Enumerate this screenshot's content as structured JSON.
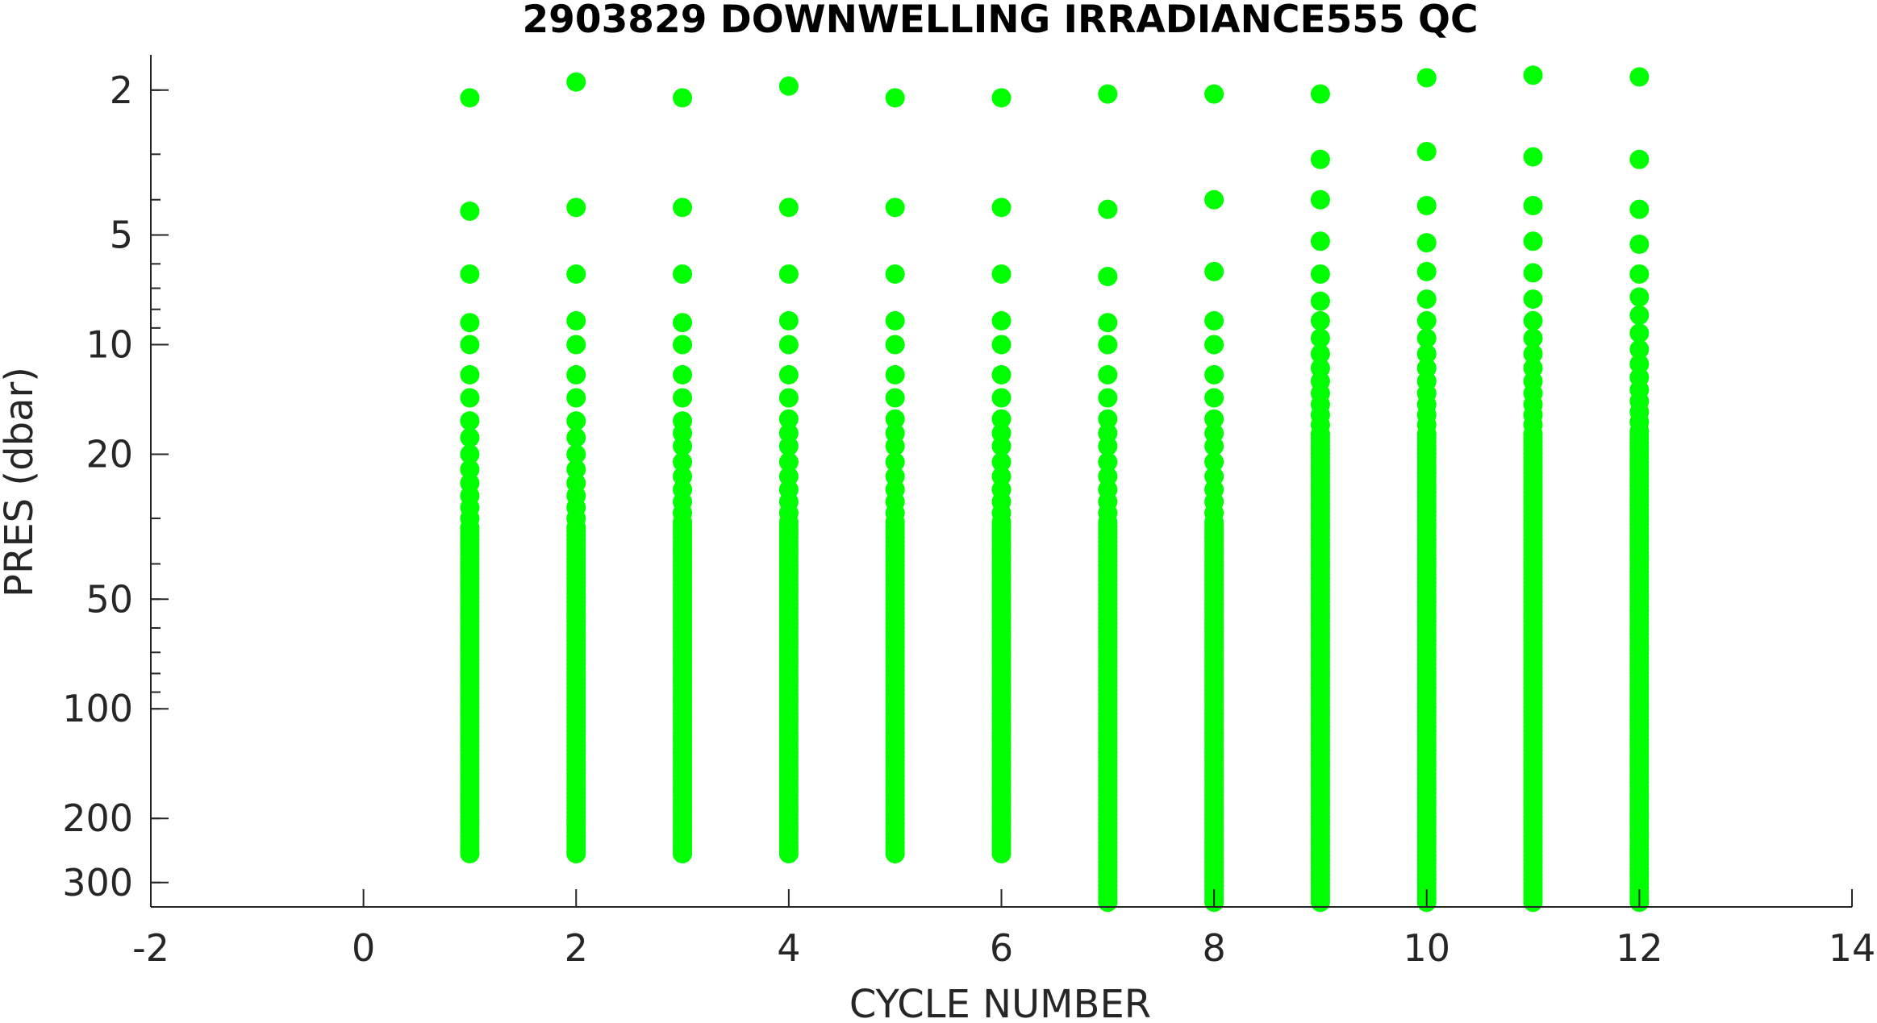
{
  "chart_data": {
    "type": "scatter",
    "title": "2903829  DOWNWELLING IRRADIANCE555 QC",
    "xlabel": "CYCLE NUMBER",
    "ylabel": "PRES (dbar)",
    "xlim": [
      -2,
      14
    ],
    "ylim": [
      1.6,
      350
    ],
    "y_scale": "log",
    "y_reversed": true,
    "x_ticks": [
      -2,
      0,
      2,
      4,
      6,
      8,
      10,
      12,
      14
    ],
    "y_ticks": [
      2,
      5,
      10,
      20,
      50,
      100,
      200,
      300
    ],
    "grid": false,
    "marker_color": "#00ff00",
    "profiles": [
      {
        "cycle": 1,
        "pres": [
          2.1,
          4.3,
          6.4,
          8.7,
          10.0,
          12.1,
          14.0,
          16.2,
          18.0,
          20.0,
          22.0,
          24.0,
          26.0,
          28.0,
          30.0
        ],
        "continuous_to": 250
      },
      {
        "cycle": 2,
        "pres": [
          1.9,
          4.2,
          6.4,
          8.6,
          10.0,
          12.1,
          14.0,
          16.2,
          18.0,
          20.0,
          22.0,
          24.0,
          26.0,
          28.0,
          30.0
        ],
        "continuous_to": 250
      },
      {
        "cycle": 3,
        "pres": [
          2.1,
          4.2,
          6.4,
          8.7,
          10.0,
          12.1,
          14.0,
          16.2,
          17.5,
          19.0,
          21.0,
          23.0,
          25.0,
          27.0,
          29.0
        ],
        "continuous_to": 250
      },
      {
        "cycle": 4,
        "pres": [
          1.95,
          4.2,
          6.4,
          8.6,
          10.0,
          12.1,
          14.0,
          16.0,
          17.5,
          19.0,
          21.0,
          23.0,
          25.0,
          27.0,
          29.0
        ],
        "continuous_to": 250
      },
      {
        "cycle": 5,
        "pres": [
          2.1,
          4.2,
          6.4,
          8.6,
          10.0,
          12.1,
          14.0,
          16.0,
          17.5,
          19.0,
          21.0,
          23.0,
          25.0,
          27.0,
          29.0
        ],
        "continuous_to": 250
      },
      {
        "cycle": 6,
        "pres": [
          2.1,
          4.2,
          6.4,
          8.6,
          10.0,
          12.1,
          14.0,
          16.0,
          17.5,
          19.0,
          21.0,
          23.0,
          25.0,
          27.0,
          29.0
        ],
        "continuous_to": 250
      },
      {
        "cycle": 7,
        "pres": [
          2.05,
          4.25,
          6.5,
          8.7,
          10.0,
          12.1,
          14.0,
          16.0,
          17.5,
          19.0,
          21.0,
          23.0,
          25.0,
          27.0,
          29.0
        ],
        "continuous_to": 340
      },
      {
        "cycle": 8,
        "pres": [
          2.05,
          4.0,
          6.3,
          8.6,
          10.0,
          12.1,
          14.0,
          16.0,
          17.5,
          19.0,
          21.0,
          23.0,
          25.0,
          27.0,
          29.0
        ],
        "continuous_to": 340
      },
      {
        "cycle": 9,
        "pres": [
          2.05,
          3.1,
          4.0,
          5.2,
          6.4,
          7.6,
          8.6,
          9.6,
          10.6,
          11.6,
          12.6,
          13.6,
          14.6,
          15.6,
          16.6
        ],
        "continuous_to": 340
      },
      {
        "cycle": 10,
        "pres": [
          1.85,
          2.95,
          4.15,
          5.25,
          6.3,
          7.5,
          8.6,
          9.6,
          10.6,
          11.6,
          12.6,
          13.6,
          14.6,
          15.6,
          16.6
        ],
        "continuous_to": 340
      },
      {
        "cycle": 11,
        "pres": [
          1.82,
          3.05,
          4.15,
          5.2,
          6.35,
          7.5,
          8.6,
          9.6,
          10.6,
          11.6,
          12.6,
          13.6,
          14.6,
          15.6,
          16.6
        ],
        "continuous_to": 340
      },
      {
        "cycle": 12,
        "pres": [
          1.84,
          3.1,
          4.25,
          5.3,
          6.4,
          7.4,
          8.3,
          9.3,
          10.3,
          11.3,
          12.3,
          13.3,
          14.3,
          15.3,
          16.3
        ],
        "continuous_to": 340
      }
    ]
  }
}
